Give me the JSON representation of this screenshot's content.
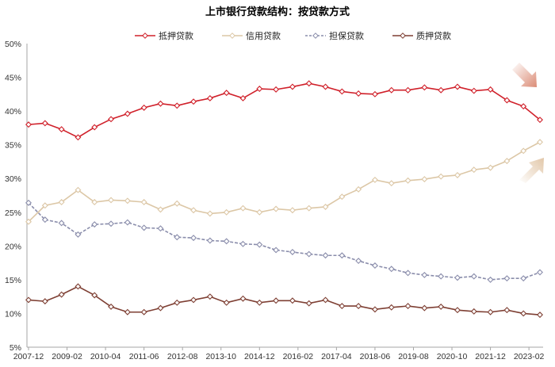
{
  "chart_data": {
    "type": "line",
    "title": "上市银行贷款结构：按贷款方式",
    "xlabel": "",
    "ylabel": "",
    "x": [
      "2007-12",
      "2008-06",
      "2008-12",
      "2009-06",
      "2009-12",
      "2010-06",
      "2010-12",
      "2011-06",
      "2011-12",
      "2012-06",
      "2012-12",
      "2013-06",
      "2013-12",
      "2014-06",
      "2014-12",
      "2015-06",
      "2015-12",
      "2016-06",
      "2016-12",
      "2017-06",
      "2017-12",
      "2018-06",
      "2018-12",
      "2019-06",
      "2019-12",
      "2020-06",
      "2020-12",
      "2021-06",
      "2021-12",
      "2022-06",
      "2022-12",
      "2023-06"
    ],
    "x_tick_labels": [
      "2007-12",
      "2009-02",
      "2010-04",
      "2011-06",
      "2012-08",
      "2013-10",
      "2014-12",
      "2016-02",
      "2017-04",
      "2018-06",
      "2019-08",
      "2020-10",
      "2021-12",
      "2023-02"
    ],
    "y_tick_labels": [
      "5%",
      "10%",
      "15%",
      "20%",
      "25%",
      "30%",
      "35%",
      "40%",
      "45%",
      "50%"
    ],
    "ylim": [
      5,
      50
    ],
    "y_unit": "%",
    "grid": false,
    "legend_placement": "top",
    "series": [
      {
        "name": "抵押贷款",
        "color": "#d0202a",
        "dashed": false,
        "values": [
          38.0,
          38.2,
          37.3,
          36.1,
          37.6,
          38.8,
          39.6,
          40.5,
          41.1,
          40.8,
          41.4,
          41.9,
          42.7,
          41.9,
          43.3,
          43.2,
          43.6,
          44.1,
          43.6,
          42.9,
          42.6,
          42.5,
          43.1,
          43.1,
          43.5,
          43.1,
          43.6,
          43.0,
          43.2,
          41.6,
          40.7,
          38.7
        ]
      },
      {
        "name": "信用贷款",
        "color": "#dcc7a6",
        "dashed": false,
        "values": [
          23.6,
          26.0,
          26.5,
          28.3,
          26.5,
          26.8,
          26.7,
          26.5,
          25.4,
          26.3,
          25.3,
          24.8,
          25.0,
          25.6,
          25.0,
          25.5,
          25.3,
          25.6,
          25.8,
          27.3,
          28.4,
          29.8,
          29.3,
          29.7,
          29.9,
          30.3,
          30.5,
          31.3,
          31.6,
          32.6,
          34.1,
          35.4
        ]
      },
      {
        "name": "担保贷款",
        "color": "#8a8dab",
        "dashed": true,
        "values": [
          26.4,
          23.9,
          23.4,
          21.7,
          23.2,
          23.3,
          23.5,
          22.7,
          22.6,
          21.3,
          21.2,
          20.8,
          20.7,
          20.3,
          20.2,
          19.4,
          19.1,
          18.8,
          18.6,
          18.6,
          17.8,
          17.1,
          16.6,
          16.0,
          15.7,
          15.5,
          15.3,
          15.5,
          15.0,
          15.2,
          15.2,
          16.1
        ]
      },
      {
        "name": "质押贷款",
        "color": "#7e3f33",
        "dashed": false,
        "values": [
          12.0,
          11.8,
          12.8,
          14.0,
          12.7,
          11.0,
          10.2,
          10.2,
          10.8,
          11.6,
          12.0,
          12.5,
          11.6,
          12.2,
          11.6,
          11.9,
          11.9,
          11.5,
          12.0,
          11.1,
          11.1,
          10.6,
          10.9,
          11.1,
          10.8,
          11.0,
          10.5,
          10.3,
          10.2,
          10.5,
          10.0,
          9.8
        ]
      }
    ],
    "annotations": [
      {
        "icon": "arrow-down-right-icon",
        "color": "#d9866f"
      },
      {
        "icon": "arrow-up-right-icon",
        "color": "#e0c4a4"
      }
    ]
  }
}
